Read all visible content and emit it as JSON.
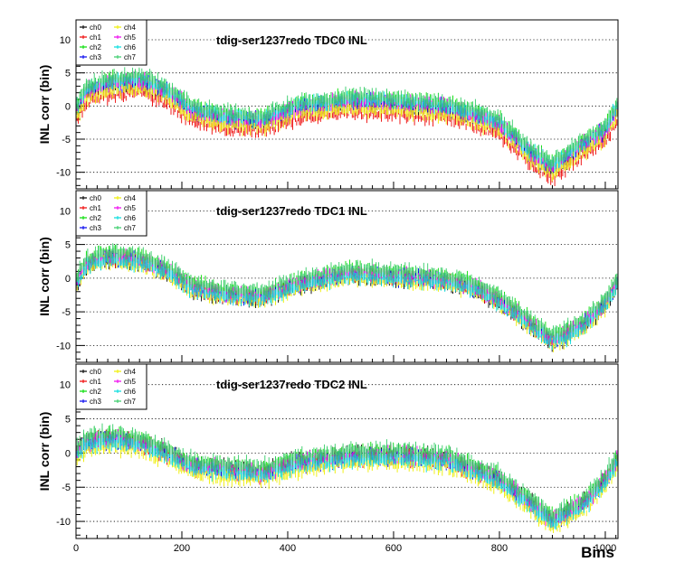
{
  "chart_data": {
    "type": "line",
    "xlabel": "Bins",
    "ylabel": "INL corr (bin)",
    "xlim": [
      0,
      1024
    ],
    "ylim": [
      -12.5,
      13
    ],
    "x_ticks": [
      0,
      200,
      400,
      600,
      800,
      1000
    ],
    "y_ticks": [
      -10,
      -5,
      0,
      5,
      10
    ],
    "grid": "dotted horizontal",
    "legend": {
      "placement": "top-left",
      "columns": 2
    },
    "series_names": [
      "ch0",
      "ch1",
      "ch2",
      "ch3",
      "ch4",
      "ch5",
      "ch6",
      "ch7"
    ],
    "colors": [
      "#000000",
      "#ee0000",
      "#00dd00",
      "#0000ee",
      "#eeee00",
      "#ee00ee",
      "#00dddd",
      "#33cc66"
    ],
    "x": [
      0,
      20,
      60,
      120,
      170,
      220,
      280,
      350,
      420,
      520,
      620,
      700,
      750,
      800,
      860,
      900,
      960,
      1000,
      1024
    ],
    "panels": [
      {
        "title": "tdig-ser1237redo TDC0 INL",
        "base": [
          -1,
          2,
          3,
          3.5,
          2,
          -1,
          -2,
          -2.5,
          -0.5,
          0.5,
          0,
          -0.5,
          -1.5,
          -3,
          -7.5,
          -9.5,
          -6,
          -4,
          -0.5
        ],
        "offsets": [
          0,
          -1.3,
          0.8,
          0.2,
          -0.7,
          0.4,
          0.6,
          1.1
        ],
        "noise": 1.0
      },
      {
        "title": "tdig-ser1237redo TDC1 INL",
        "base": [
          -1,
          2,
          3,
          2.5,
          1,
          -1.5,
          -2.5,
          -3,
          -1,
          0.5,
          0,
          -0.5,
          -1.5,
          -3.5,
          -7,
          -9.5,
          -7,
          -4,
          -0.5
        ],
        "offsets": [
          -0.3,
          0.2,
          0.8,
          0.1,
          -0.4,
          0.3,
          -0.2,
          1.0
        ],
        "noise": 0.9
      },
      {
        "title": "tdig-ser1237redo TDC2 INL",
        "base": [
          0,
          1.5,
          2,
          1.5,
          0,
          -2,
          -2.5,
          -3,
          -1.5,
          -0.5,
          -0.5,
          -1,
          -2.5,
          -4,
          -7.5,
          -10,
          -7.5,
          -4,
          -1
        ],
        "offsets": [
          0.4,
          0,
          0.6,
          -0.1,
          -0.9,
          0.2,
          -0.3,
          0.9
        ],
        "noise": 1.0
      }
    ]
  }
}
